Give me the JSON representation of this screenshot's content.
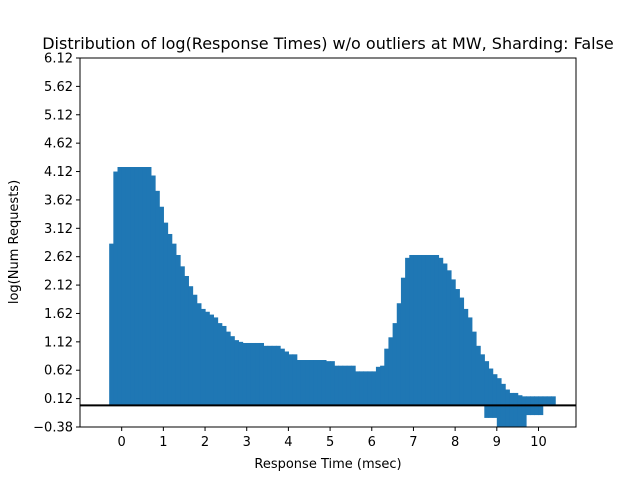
{
  "chart_data": {
    "type": "bar",
    "title": "Distribution of log(Response Times) w/o outliers at MW, Sharding: False",
    "xlabel": "Response Time (msec)",
    "ylabel": "log(Num Requests)",
    "xlim": [
      -1.0,
      10.9
    ],
    "ylim": [
      -0.38,
      6.12
    ],
    "xticks": [
      0,
      1,
      2,
      3,
      4,
      5,
      6,
      7,
      8,
      9,
      10
    ],
    "xtick_labels": [
      "0",
      "1",
      "2",
      "3",
      "4",
      "5",
      "6",
      "7",
      "8",
      "9",
      "10"
    ],
    "yticks": [
      -0.38,
      0.12,
      0.62,
      1.12,
      1.62,
      2.12,
      2.62,
      3.12,
      3.62,
      4.12,
      4.62,
      5.12,
      5.62,
      6.12
    ],
    "ytick_labels": [
      "−0.38",
      "0.12",
      "0.62",
      "1.12",
      "1.62",
      "2.12",
      "2.62",
      "3.12",
      "3.62",
      "4.12",
      "4.62",
      "5.12",
      "5.62",
      "6.12"
    ],
    "hline_y": 0.0,
    "bin_width": 0.1,
    "color": "#1f77b4",
    "bins": [
      [
        -0.3,
        2.85
      ],
      [
        -0.2,
        4.12
      ],
      [
        -0.1,
        4.2
      ],
      [
        0.0,
        4.2
      ],
      [
        0.1,
        4.2
      ],
      [
        0.2,
        4.2
      ],
      [
        0.3,
        4.2
      ],
      [
        0.4,
        4.2
      ],
      [
        0.5,
        4.2
      ],
      [
        0.6,
        4.2
      ],
      [
        0.7,
        4.05
      ],
      [
        0.8,
        3.78
      ],
      [
        0.9,
        3.5
      ],
      [
        1.0,
        3.22
      ],
      [
        1.1,
        3.02
      ],
      [
        1.2,
        2.85
      ],
      [
        1.3,
        2.65
      ],
      [
        1.4,
        2.45
      ],
      [
        1.5,
        2.28
      ],
      [
        1.6,
        2.1
      ],
      [
        1.7,
        1.95
      ],
      [
        1.8,
        1.8
      ],
      [
        1.9,
        1.7
      ],
      [
        2.0,
        1.65
      ],
      [
        2.1,
        1.6
      ],
      [
        2.2,
        1.55
      ],
      [
        2.3,
        1.45
      ],
      [
        2.4,
        1.4
      ],
      [
        2.5,
        1.3
      ],
      [
        2.6,
        1.22
      ],
      [
        2.7,
        1.15
      ],
      [
        2.8,
        1.12
      ],
      [
        2.9,
        1.1
      ],
      [
        3.0,
        1.1
      ],
      [
        3.1,
        1.1
      ],
      [
        3.2,
        1.1
      ],
      [
        3.3,
        1.1
      ],
      [
        3.4,
        1.05
      ],
      [
        3.5,
        1.05
      ],
      [
        3.6,
        1.05
      ],
      [
        3.7,
        1.05
      ],
      [
        3.8,
        1.0
      ],
      [
        3.9,
        0.95
      ],
      [
        4.0,
        0.9
      ],
      [
        4.1,
        0.9
      ],
      [
        4.2,
        0.8
      ],
      [
        4.3,
        0.8
      ],
      [
        4.4,
        0.8
      ],
      [
        4.5,
        0.8
      ],
      [
        4.6,
        0.8
      ],
      [
        4.7,
        0.8
      ],
      [
        4.8,
        0.8
      ],
      [
        4.9,
        0.78
      ],
      [
        5.0,
        0.78
      ],
      [
        5.1,
        0.7
      ],
      [
        5.2,
        0.7
      ],
      [
        5.3,
        0.7
      ],
      [
        5.4,
        0.7
      ],
      [
        5.5,
        0.7
      ],
      [
        5.6,
        0.6
      ],
      [
        5.7,
        0.6
      ],
      [
        5.8,
        0.6
      ],
      [
        5.9,
        0.6
      ],
      [
        6.0,
        0.6
      ],
      [
        6.1,
        0.68
      ],
      [
        6.2,
        0.7
      ],
      [
        6.3,
        1.0
      ],
      [
        6.4,
        1.2
      ],
      [
        6.5,
        1.45
      ],
      [
        6.6,
        1.8
      ],
      [
        6.7,
        2.25
      ],
      [
        6.8,
        2.6
      ],
      [
        6.9,
        2.65
      ],
      [
        7.0,
        2.65
      ],
      [
        7.1,
        2.65
      ],
      [
        7.2,
        2.65
      ],
      [
        7.3,
        2.65
      ],
      [
        7.4,
        2.65
      ],
      [
        7.5,
        2.65
      ],
      [
        7.6,
        2.6
      ],
      [
        7.7,
        2.5
      ],
      [
        7.8,
        2.38
      ],
      [
        7.9,
        2.22
      ],
      [
        8.0,
        2.05
      ],
      [
        8.1,
        1.9
      ],
      [
        8.2,
        1.7
      ],
      [
        8.3,
        1.55
      ],
      [
        8.4,
        1.3
      ],
      [
        8.5,
        1.05
      ],
      [
        8.6,
        0.9
      ],
      [
        8.7,
        0.78
      ],
      [
        8.8,
        0.65
      ],
      [
        8.9,
        0.55
      ],
      [
        9.0,
        0.48
      ],
      [
        9.1,
        0.38
      ],
      [
        9.2,
        0.28
      ],
      [
        9.3,
        0.22
      ],
      [
        9.4,
        0.22
      ],
      [
        9.5,
        0.18
      ],
      [
        9.6,
        0.16
      ],
      [
        9.7,
        0.16
      ],
      [
        9.8,
        0.16
      ],
      [
        9.9,
        0.16
      ],
      [
        10.0,
        0.16
      ],
      [
        10.1,
        0.16
      ],
      [
        10.2,
        0.16
      ],
      [
        10.3,
        0.16
      ]
    ],
    "negative_bins": [
      [
        8.7,
        -0.22
      ],
      [
        8.8,
        -0.22
      ],
      [
        8.9,
        -0.22
      ],
      [
        9.0,
        -0.38
      ],
      [
        9.1,
        -0.38
      ],
      [
        9.2,
        -0.38
      ],
      [
        9.3,
        -0.38
      ],
      [
        9.4,
        -0.38
      ],
      [
        9.5,
        -0.38
      ],
      [
        9.6,
        -0.38
      ],
      [
        9.7,
        -0.17
      ],
      [
        9.8,
        -0.17
      ],
      [
        9.9,
        -0.17
      ],
      [
        10.0,
        -0.17
      ]
    ]
  }
}
